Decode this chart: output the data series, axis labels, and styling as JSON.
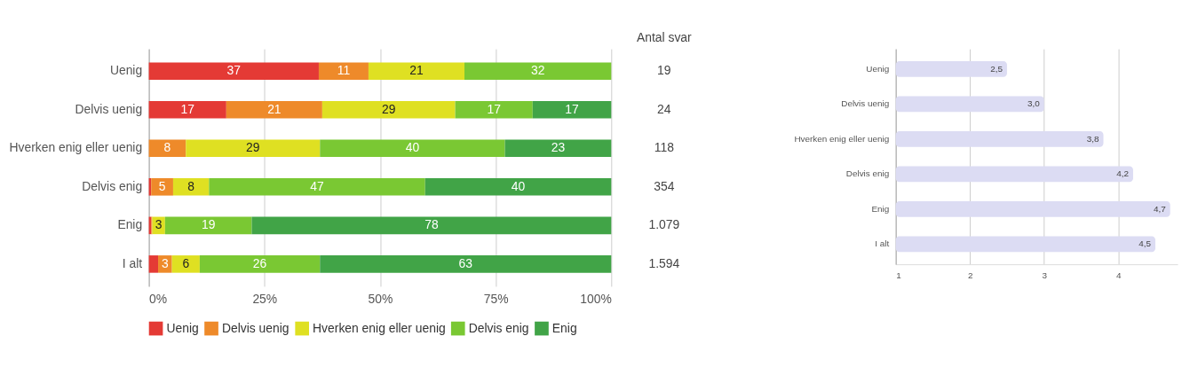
{
  "chart_data": [
    {
      "type": "bar",
      "orientation": "horizontal",
      "stacked": true,
      "categories": [
        "Uenig",
        "Delvis uenig",
        "Hverken enig eller uenig",
        "Delvis enig",
        "Enig",
        "I alt"
      ],
      "series": [
        {
          "name": "Uenig",
          "color": "#e43a35",
          "values": [
            36.75,
            16.75,
            null,
            0.5,
            0.5,
            2
          ],
          "value_labels": [
            "37",
            "17",
            null,
            null,
            null,
            null
          ]
        },
        {
          "name": "Delvis uenig",
          "color": "#ee8a2a",
          "values": [
            10.75,
            20.75,
            8,
            4.75,
            0.25,
            3
          ],
          "value_labels": [
            "11",
            "21",
            "8",
            "5",
            null,
            "3"
          ]
        },
        {
          "name": "Hverken enig eller uenig",
          "color": "#dfe022",
          "values": [
            20.75,
            28.75,
            29,
            7.75,
            2.75,
            6
          ],
          "value_labels": [
            "21",
            "29",
            "29",
            "8",
            "3",
            "6"
          ]
        },
        {
          "name": "Delvis enig",
          "color": "#7ac833",
          "values": [
            31.75,
            16.75,
            40,
            46.75,
            18.75,
            26
          ],
          "value_labels": [
            "32",
            "17",
            "40",
            "47",
            "19",
            "26"
          ]
        },
        {
          "name": "Enig",
          "color": "#41a447",
          "values": [
            null,
            17,
            23,
            40.25,
            77.75,
            63
          ],
          "value_labels": [
            null,
            "17",
            "23",
            "40",
            "78",
            "63"
          ]
        }
      ],
      "xlim": [
        0,
        100
      ],
      "xticks": [
        {
          "value": 0,
          "label": "0%"
        },
        {
          "value": 25,
          "label": "25%"
        },
        {
          "value": 50,
          "label": "50%"
        },
        {
          "value": 75,
          "label": "75%"
        },
        {
          "value": 100,
          "label": "100%"
        }
      ],
      "grid": "x",
      "legend": "bottom",
      "annotations": [
        "Antal svar",
        "19",
        "24",
        "118",
        "354",
        "1.079",
        "1.594"
      ]
    },
    {
      "type": "bar",
      "orientation": "horizontal",
      "categories": [
        "Uenig",
        "Delvis uenig",
        "Hverken enig eller uenig",
        "Delvis enig",
        "Enig",
        "I alt"
      ],
      "series": [
        {
          "color": "#dcdcf3",
          "values": [
            2.5,
            3.0,
            3.8,
            4.2,
            4.7,
            4.5
          ],
          "value_labels": [
            "2,5",
            "3,0",
            "3,8",
            "4,2",
            "4,7",
            "4,5"
          ]
        }
      ],
      "xlim": [
        1,
        4.8
      ],
      "xticks": [
        1,
        2,
        3,
        4
      ],
      "grid": "x"
    }
  ]
}
